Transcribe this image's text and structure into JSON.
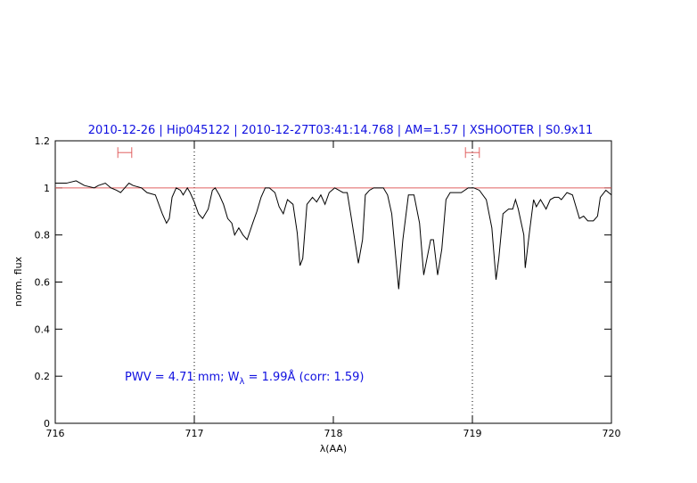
{
  "chart_data": {
    "type": "line",
    "title": "2010-12-26 | Hip045122 | 2010-12-27T03:41:14.768 | AM=1.57 | XSHOOTER | S0.9x11",
    "xlabel": "λ(AA)",
    "ylabel": "norm. flux",
    "annotation": {
      "before": "PWV = 4.71 mm; W",
      "sub": "λ",
      "after": " = 1.99Å (corr: 1.59)"
    },
    "xlim": [
      716,
      720
    ],
    "ylim": [
      0,
      1.2
    ],
    "xticks": [
      716,
      717,
      718,
      719,
      720
    ],
    "yticks": [
      0,
      0.2,
      0.4,
      0.6,
      0.8,
      1,
      1.2
    ],
    "reference_line": {
      "y": 1,
      "color": "#e06060"
    },
    "vlines": [
      717,
      719
    ],
    "range_markers": {
      "color": "#e06060",
      "items": [
        {
          "x": [
            716.45,
            716.55
          ],
          "y": 1.15
        },
        {
          "x": [
            718.95,
            719.05
          ],
          "y": 1.15
        }
      ]
    },
    "series": [
      {
        "color": "#000000",
        "x": [
          716.0,
          716.08,
          716.15,
          716.21,
          716.28,
          716.31,
          716.36,
          716.4,
          716.44,
          716.47,
          716.5,
          716.53,
          716.56,
          716.62,
          716.66,
          716.72,
          716.77,
          716.8,
          716.82,
          716.84,
          716.87,
          716.9,
          716.92,
          716.95,
          716.97,
          717.0,
          717.03,
          717.06,
          717.1,
          717.13,
          717.15,
          717.18,
          717.21,
          717.24,
          717.27,
          717.29,
          717.32,
          717.35,
          717.38,
          717.42,
          717.45,
          717.48,
          717.51,
          717.54,
          717.58,
          717.61,
          717.64,
          717.67,
          717.71,
          717.74,
          717.76,
          717.78,
          717.81,
          717.85,
          717.88,
          717.91,
          717.94,
          717.97,
          718.01,
          718.04,
          718.07,
          718.1,
          718.13,
          718.18,
          718.21,
          718.23,
          718.26,
          718.29,
          718.33,
          718.36,
          718.39,
          718.42,
          718.47,
          718.5,
          718.54,
          718.58,
          718.62,
          718.65,
          718.68,
          718.7,
          718.72,
          718.75,
          718.78,
          718.81,
          718.84,
          718.87,
          718.92,
          718.97,
          719.01,
          719.05,
          719.1,
          719.14,
          719.17,
          719.19,
          719.22,
          719.26,
          719.29,
          719.31,
          719.33,
          719.37,
          719.38,
          719.41,
          719.44,
          719.46,
          719.49,
          719.53,
          719.56,
          719.59,
          719.62,
          719.64,
          719.68,
          719.72,
          719.75,
          719.77,
          719.8,
          719.83,
          719.87,
          719.9,
          719.92,
          719.96,
          720.0
        ],
        "values": [
          1.02,
          1.02,
          1.03,
          1.01,
          1.0,
          1.01,
          1.02,
          1.0,
          0.99,
          0.98,
          1.0,
          1.02,
          1.01,
          1.0,
          0.98,
          0.97,
          0.89,
          0.85,
          0.87,
          0.96,
          1.0,
          0.99,
          0.97,
          1.0,
          0.98,
          0.94,
          0.89,
          0.87,
          0.91,
          0.99,
          1.0,
          0.97,
          0.93,
          0.87,
          0.85,
          0.8,
          0.83,
          0.8,
          0.78,
          0.85,
          0.9,
          0.96,
          1.0,
          1.0,
          0.98,
          0.92,
          0.89,
          0.95,
          0.93,
          0.81,
          0.67,
          0.7,
          0.93,
          0.96,
          0.94,
          0.97,
          0.93,
          0.98,
          1.0,
          0.99,
          0.98,
          0.98,
          0.87,
          0.68,
          0.78,
          0.97,
          0.99,
          1.0,
          1.0,
          1.0,
          0.97,
          0.89,
          0.57,
          0.78,
          0.97,
          0.97,
          0.85,
          0.63,
          0.72,
          0.78,
          0.78,
          0.63,
          0.74,
          0.95,
          0.98,
          0.98,
          0.98,
          1.0,
          1.0,
          0.99,
          0.95,
          0.83,
          0.61,
          0.7,
          0.89,
          0.91,
          0.91,
          0.95,
          0.91,
          0.8,
          0.66,
          0.81,
          0.95,
          0.92,
          0.95,
          0.91,
          0.95,
          0.96,
          0.96,
          0.95,
          0.98,
          0.97,
          0.91,
          0.87,
          0.88,
          0.86,
          0.86,
          0.88,
          0.96,
          0.99,
          0.97
        ]
      }
    ]
  }
}
